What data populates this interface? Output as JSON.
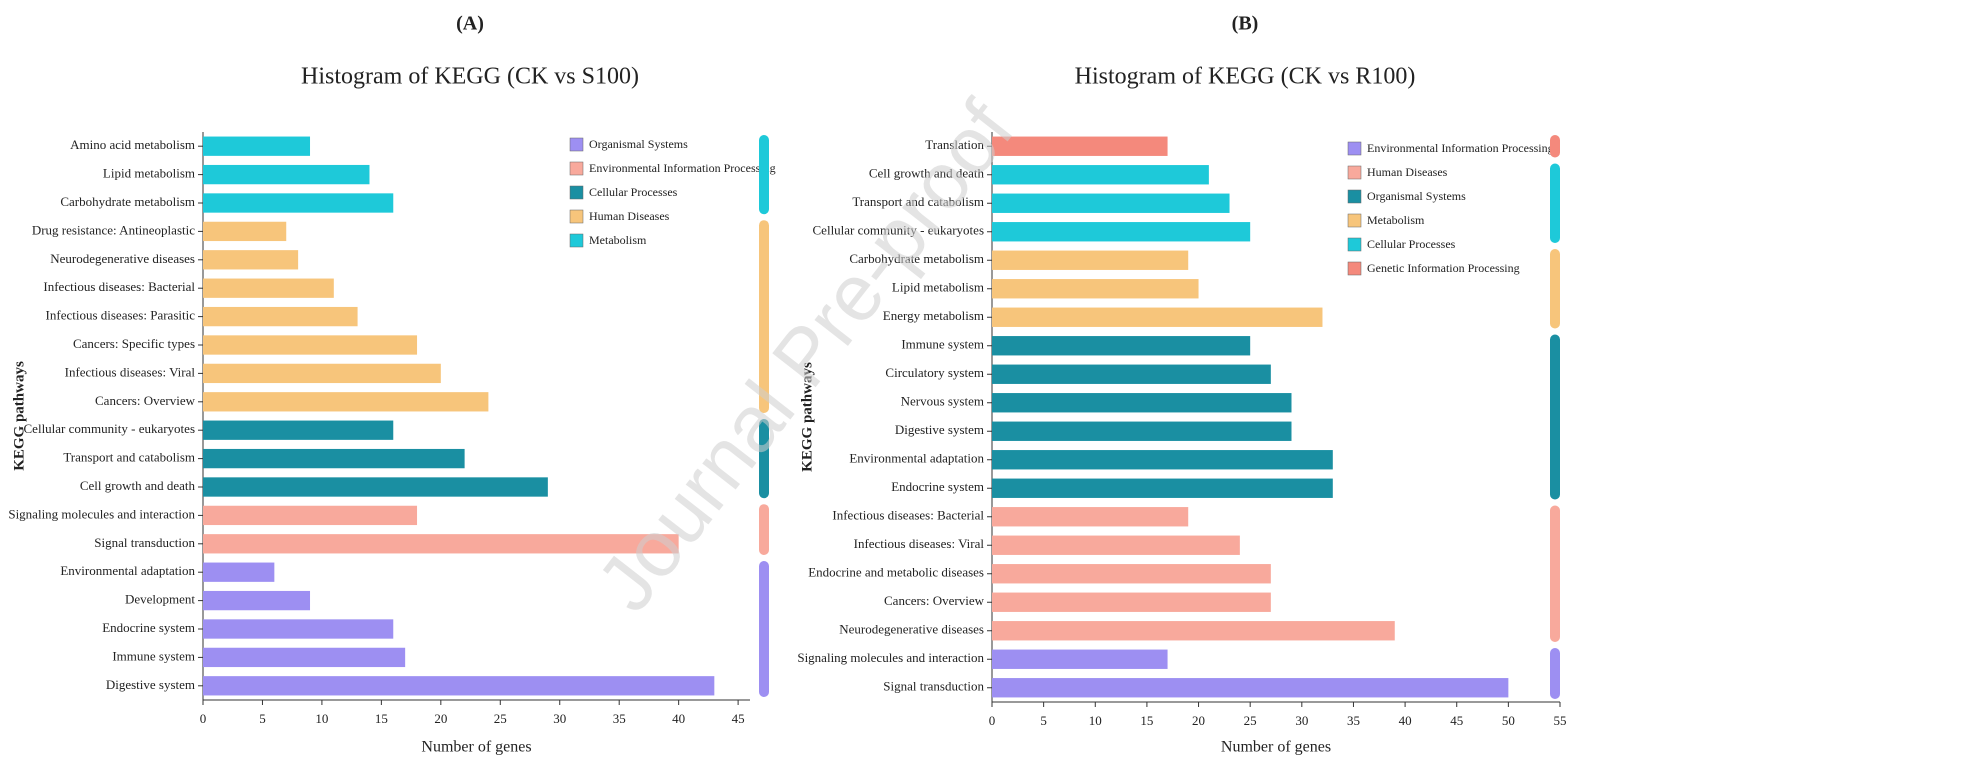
{
  "watermark": "Journal Pre-proof",
  "chart_data": [
    {
      "type": "bar",
      "orientation": "horizontal",
      "panel": "(A)",
      "title": "Histogram of KEGG (CK vs S100)",
      "xlabel": "Number of genes",
      "ylabel": "KEGG pathways",
      "categories": [
        "Amino acid metabolism",
        "Lipid metabolism",
        "Carbohydrate metabolism",
        "Drug resistance: Antineoplastic",
        "Neurodegenerative diseases",
        "Infectious diseases: Bacterial",
        "Infectious diseases: Parasitic",
        "Cancers: Specific types",
        "Infectious diseases: Viral",
        "Cancers: Overview",
        "Cellular community - eukaryotes",
        "Transport and catabolism",
        "Cell growth and death",
        "Signaling molecules and interaction",
        "Signal transduction",
        "Environmental adaptation",
        "Development",
        "Endocrine system",
        "Immune system",
        "Digestive system"
      ],
      "series": [
        {
          "name": "Organismal Systems",
          "color": "#9d8ff2",
          "values": [
            null,
            null,
            null,
            null,
            null,
            null,
            null,
            null,
            null,
            null,
            null,
            null,
            null,
            null,
            null,
            6,
            9,
            16,
            17,
            43
          ]
        },
        {
          "name": "Environmental Information Processing",
          "color": "#f8a99c",
          "values": [
            null,
            null,
            null,
            null,
            null,
            null,
            null,
            null,
            null,
            null,
            null,
            null,
            null,
            18,
            40,
            null,
            null,
            null,
            null,
            null
          ]
        },
        {
          "name": "Cellular Processes",
          "color": "#1a8fa2",
          "values": [
            null,
            null,
            null,
            null,
            null,
            null,
            null,
            null,
            null,
            null,
            16,
            22,
            29,
            null,
            null,
            null,
            null,
            null,
            null,
            null
          ]
        },
        {
          "name": "Human Diseases",
          "color": "#f7c57b",
          "values": [
            null,
            null,
            null,
            7,
            8,
            11,
            13,
            18,
            20,
            24,
            null,
            null,
            null,
            null,
            null,
            null,
            null,
            null,
            null,
            null
          ]
        },
        {
          "name": "Metabolism",
          "color": "#1ec9d9",
          "values": [
            9,
            14,
            16,
            null,
            null,
            null,
            null,
            null,
            null,
            null,
            null,
            null,
            null,
            null,
            null,
            null,
            null,
            null,
            null,
            null
          ]
        }
      ],
      "xlim": [
        0,
        46
      ],
      "xticks": [
        0,
        5,
        10,
        15,
        20,
        25,
        30,
        35,
        40,
        45
      ]
    },
    {
      "type": "bar",
      "orientation": "horizontal",
      "panel": "(B)",
      "title": "Histogram of KEGG (CK vs R100)",
      "xlabel": "Number of genes",
      "ylabel": "KEGG pathways",
      "categories": [
        "Translation",
        "Cell growth and death",
        "Transport and catabolism",
        "Cellular community - eukaryotes",
        "Carbohydrate metabolism",
        "Lipid metabolism",
        "Energy metabolism",
        "Immune system",
        "Circulatory system",
        "Nervous system",
        "Digestive system",
        "Environmental adaptation",
        "Endocrine system",
        "Infectious diseases: Bacterial",
        "Infectious diseases: Viral",
        "Endocrine and metabolic diseases",
        "Cancers: Overview",
        "Neurodegenerative diseases",
        "Signaling molecules and interaction",
        "Signal transduction"
      ],
      "series": [
        {
          "name": "Environmental Information Processing",
          "color": "#9d8ff2",
          "values": [
            null,
            null,
            null,
            null,
            null,
            null,
            null,
            null,
            null,
            null,
            null,
            null,
            null,
            null,
            null,
            null,
            null,
            null,
            17,
            50
          ]
        },
        {
          "name": "Human Diseases",
          "color": "#f8a99c",
          "values": [
            null,
            null,
            null,
            null,
            null,
            null,
            null,
            null,
            null,
            null,
            null,
            null,
            null,
            19,
            24,
            27,
            27,
            39,
            null,
            null
          ]
        },
        {
          "name": "Organismal Systems",
          "color": "#1a8fa2",
          "values": [
            null,
            null,
            null,
            null,
            null,
            null,
            null,
            25,
            27,
            29,
            29,
            33,
            33,
            null,
            null,
            null,
            null,
            null,
            null,
            null
          ]
        },
        {
          "name": "Metabolism",
          "color": "#f7c57b",
          "values": [
            null,
            null,
            null,
            null,
            19,
            20,
            32,
            null,
            null,
            null,
            null,
            null,
            null,
            null,
            null,
            null,
            null,
            null,
            null,
            null
          ]
        },
        {
          "name": "Cellular Processes",
          "color": "#1ec9d9",
          "values": [
            null,
            21,
            23,
            25,
            null,
            null,
            null,
            null,
            null,
            null,
            null,
            null,
            null,
            null,
            null,
            null,
            null,
            null,
            null,
            null
          ]
        },
        {
          "name": "Genetic Information Processing",
          "color": "#f4897c",
          "values": [
            17,
            null,
            null,
            null,
            null,
            null,
            null,
            null,
            null,
            null,
            null,
            null,
            null,
            null,
            null,
            null,
            null,
            null,
            null,
            null
          ]
        }
      ],
      "xlim": [
        0,
        55
      ],
      "xticks": [
        0,
        5,
        10,
        15,
        20,
        25,
        30,
        35,
        40,
        45,
        50,
        55
      ]
    }
  ]
}
